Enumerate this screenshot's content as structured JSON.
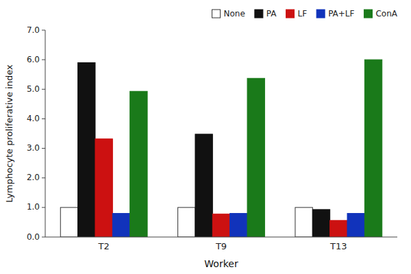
{
  "chart_data": {
    "type": "bar",
    "categories": [
      "T2",
      "T9",
      "T13"
    ],
    "series": [
      {
        "name": "None",
        "color": "#ffffff",
        "values": [
          1.0,
          1.0,
          1.0
        ]
      },
      {
        "name": "PA",
        "color": "#111111",
        "values": [
          5.9,
          3.48,
          0.93
        ]
      },
      {
        "name": "LF",
        "color": "#cc1111",
        "values": [
          3.32,
          0.78,
          0.56
        ]
      },
      {
        "name": "PA+LF",
        "color": "#1133bb",
        "values": [
          0.8,
          0.8,
          0.8
        ]
      },
      {
        "name": "ConA",
        "color": "#1a7a1a",
        "values": [
          4.93,
          5.37,
          6.0
        ]
      }
    ],
    "xlabel": "Worker",
    "ylabel": "Lymphocyte proliferative index",
    "ylim": [
      0.0,
      7.0
    ],
    "yticks": [
      {
        "value": 0,
        "label": "0.0"
      },
      {
        "value": 1,
        "label": "1.0"
      },
      {
        "value": 2,
        "label": "2.0"
      },
      {
        "value": 3,
        "label": "3.0"
      },
      {
        "value": 4,
        "label": "4.0"
      },
      {
        "value": 5,
        "label": "5.0"
      },
      {
        "value": 6,
        "label": "6.0"
      },
      {
        "value": 7,
        "label": "7.0"
      }
    ],
    "grid": false,
    "legend": "upper-right"
  }
}
